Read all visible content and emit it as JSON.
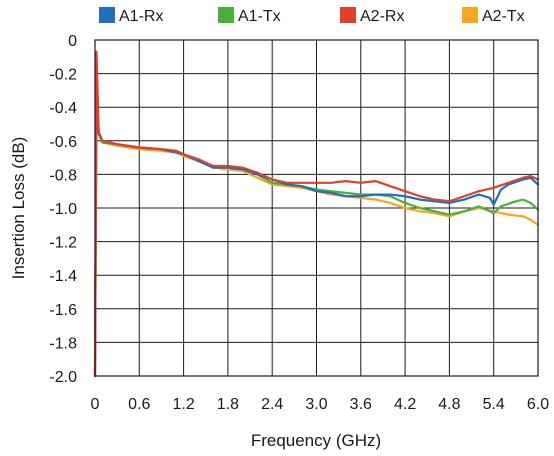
{
  "chart_data": {
    "type": "line",
    "title": "",
    "xlabel": "Frequency (GHz)",
    "ylabel": "Insertion Loss (dB)",
    "xlim": [
      0,
      6.0
    ],
    "ylim": [
      -2.0,
      0
    ],
    "x_ticks": [
      0,
      0.6,
      1.2,
      1.8,
      2.4,
      3.0,
      3.6,
      4.2,
      4.8,
      5.4,
      6.0
    ],
    "x_tick_labels": [
      "0",
      "0.6",
      "1.2",
      "1.8",
      "2.4",
      "3.0",
      "3.6",
      "4.2",
      "4.8",
      "5.4",
      "6.0"
    ],
    "y_ticks": [
      0,
      -0.2,
      -0.4,
      -0.6,
      -0.8,
      -1.0,
      -1.2,
      -1.4,
      -1.6,
      -1.8,
      -2.0
    ],
    "y_tick_labels": [
      "0",
      "-0.2",
      "-0.4",
      "-0.6",
      "-0.8",
      "-1.0",
      "-1.2",
      "-1.4",
      "-1.6",
      "-1.8",
      "-2.0"
    ],
    "grid": true,
    "legend_position": "top",
    "series": [
      {
        "name": "A1-Rx",
        "color": "#1f6fbf",
        "x": [
          0,
          0.02,
          0.05,
          0.1,
          0.3,
          0.6,
          0.9,
          1.1,
          1.2,
          1.4,
          1.6,
          1.8,
          2.0,
          2.2,
          2.4,
          2.6,
          2.8,
          3.0,
          3.2,
          3.4,
          3.6,
          3.8,
          4.0,
          4.2,
          4.4,
          4.6,
          4.8,
          5.0,
          5.2,
          5.35,
          5.4,
          5.5,
          5.6,
          5.8,
          5.9,
          6.0
        ],
        "y": [
          -2.0,
          -0.3,
          -0.55,
          -0.6,
          -0.62,
          -0.64,
          -0.65,
          -0.67,
          -0.68,
          -0.72,
          -0.76,
          -0.76,
          -0.77,
          -0.8,
          -0.83,
          -0.86,
          -0.87,
          -0.9,
          -0.91,
          -0.93,
          -0.93,
          -0.92,
          -0.92,
          -0.93,
          -0.95,
          -0.96,
          -0.97,
          -0.95,
          -0.92,
          -0.94,
          -0.98,
          -0.89,
          -0.86,
          -0.83,
          -0.82,
          -0.86
        ]
      },
      {
        "name": "A1-Tx",
        "color": "#4caf3a",
        "x": [
          0,
          0.02,
          0.05,
          0.1,
          0.3,
          0.6,
          0.9,
          1.1,
          1.2,
          1.4,
          1.6,
          1.8,
          2.0,
          2.2,
          2.4,
          2.6,
          2.8,
          3.0,
          3.2,
          3.4,
          3.6,
          3.8,
          4.0,
          4.2,
          4.4,
          4.6,
          4.8,
          5.0,
          5.2,
          5.35,
          5.4,
          5.5,
          5.7,
          5.8,
          5.9,
          6.0
        ],
        "y": [
          -2.0,
          -0.3,
          -0.56,
          -0.61,
          -0.62,
          -0.64,
          -0.65,
          -0.66,
          -0.68,
          -0.72,
          -0.75,
          -0.76,
          -0.76,
          -0.8,
          -0.85,
          -0.86,
          -0.87,
          -0.89,
          -0.9,
          -0.91,
          -0.92,
          -0.92,
          -0.93,
          -0.97,
          -1.0,
          -1.02,
          -1.04,
          -1.02,
          -0.99,
          -1.02,
          -1.03,
          -0.99,
          -0.96,
          -0.95,
          -0.97,
          -1.01
        ]
      },
      {
        "name": "A2-Rx",
        "color": "#e0402b",
        "x": [
          0,
          0.02,
          0.05,
          0.1,
          0.3,
          0.6,
          0.9,
          1.1,
          1.2,
          1.4,
          1.6,
          1.8,
          2.0,
          2.2,
          2.4,
          2.6,
          2.8,
          3.0,
          3.2,
          3.4,
          3.6,
          3.8,
          4.0,
          4.2,
          4.4,
          4.6,
          4.8,
          5.0,
          5.2,
          5.4,
          5.6,
          5.8,
          5.9,
          6.0
        ],
        "y": [
          -2.0,
          -0.07,
          -0.55,
          -0.6,
          -0.62,
          -0.64,
          -0.65,
          -0.66,
          -0.68,
          -0.71,
          -0.75,
          -0.75,
          -0.76,
          -0.79,
          -0.83,
          -0.85,
          -0.85,
          -0.85,
          -0.85,
          -0.84,
          -0.85,
          -0.84,
          -0.87,
          -0.9,
          -0.93,
          -0.95,
          -0.96,
          -0.93,
          -0.9,
          -0.88,
          -0.85,
          -0.82,
          -0.81,
          -0.83
        ]
      },
      {
        "name": "A2-Tx",
        "color": "#f5a623",
        "x": [
          0,
          0.02,
          0.05,
          0.1,
          0.3,
          0.6,
          0.9,
          1.1,
          1.2,
          1.4,
          1.6,
          1.8,
          2.0,
          2.2,
          2.4,
          2.6,
          2.8,
          3.0,
          3.2,
          3.4,
          3.6,
          3.8,
          4.0,
          4.2,
          4.4,
          4.6,
          4.8,
          5.0,
          5.2,
          5.4,
          5.6,
          5.8,
          5.9,
          6.0
        ],
        "y": [
          -2.0,
          -0.25,
          -0.55,
          -0.61,
          -0.63,
          -0.65,
          -0.66,
          -0.67,
          -0.69,
          -0.72,
          -0.76,
          -0.77,
          -0.78,
          -0.82,
          -0.86,
          -0.87,
          -0.88,
          -0.9,
          -0.92,
          -0.93,
          -0.94,
          -0.95,
          -0.97,
          -1.0,
          -1.02,
          -1.03,
          -1.05,
          -1.02,
          -1.0,
          -1.02,
          -1.04,
          -1.05,
          -1.07,
          -1.1
        ]
      }
    ]
  }
}
